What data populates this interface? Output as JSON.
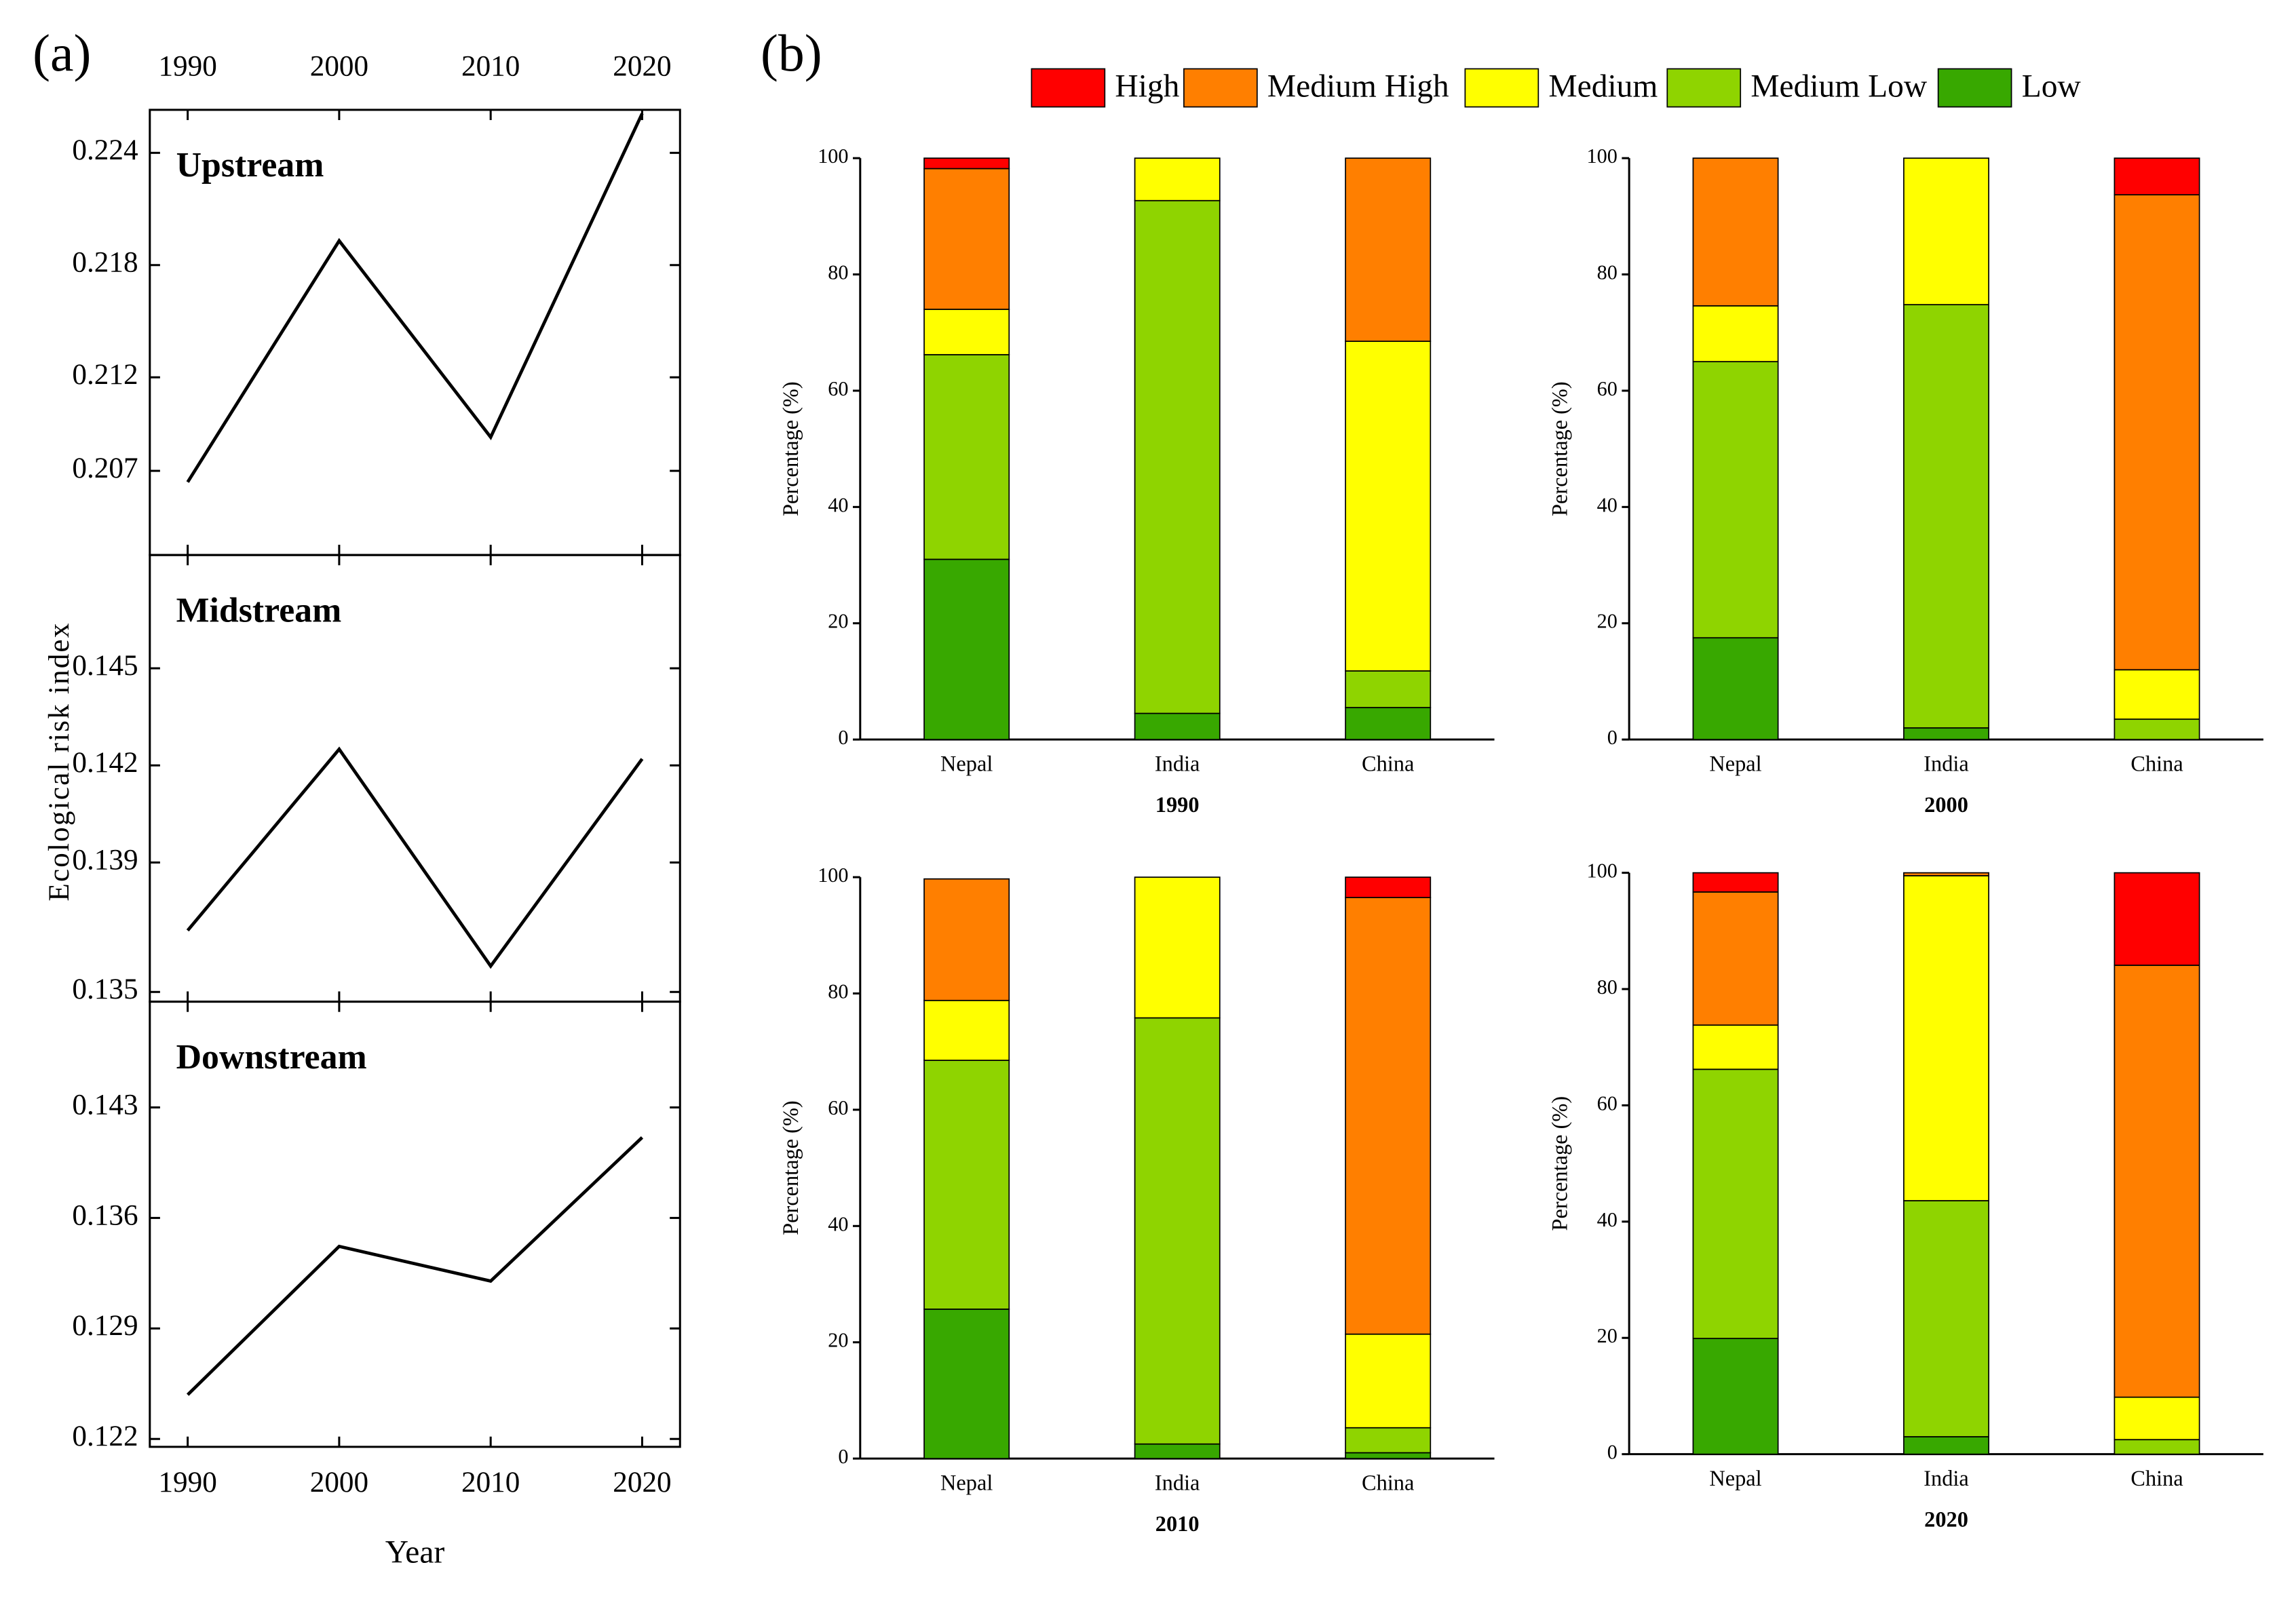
{
  "labels": {
    "a": "(a)",
    "b": "(b)",
    "y_axis": "Ecological risk index",
    "x_axis": "Year"
  },
  "chart_data": [
    {
      "type": "line",
      "title": "Upstream",
      "x": [
        1990,
        2000,
        2010,
        2020
      ],
      "values": [
        0.2064,
        0.2193,
        0.2088,
        0.2261
      ],
      "xlim": [
        1987.5,
        2022.5
      ],
      "xticks": [
        1990,
        2000,
        2010,
        2020
      ],
      "xtick_labels": "top",
      "ylim": [
        0.2025,
        0.2263
      ],
      "yticks": [
        0.207,
        0.212,
        0.218,
        0.224
      ],
      "color": "#000000"
    },
    {
      "type": "line",
      "title": "Midstream",
      "x": [
        1990,
        2000,
        2010,
        2020
      ],
      "values": [
        0.1369,
        0.1425,
        0.1358,
        0.1422
      ],
      "xlim": [
        1987.5,
        2022.5
      ],
      "xticks": [
        1990,
        2000,
        2010,
        2020
      ],
      "xtick_labels": "none",
      "ylim": [
        0.1347,
        0.1485
      ],
      "yticks": [
        0.135,
        0.139,
        0.142,
        0.145
      ],
      "color": "#000000"
    },
    {
      "type": "line",
      "title": "Downstream",
      "x": [
        1990,
        2000,
        2010,
        2020
      ],
      "values": [
        0.1248,
        0.1342,
        0.132,
        0.1411
      ],
      "xlim": [
        1987.5,
        2022.5
      ],
      "xticks": [
        1990,
        2000,
        2010,
        2020
      ],
      "xtick_labels": "bottom",
      "ylim": [
        0.1215,
        0.1497
      ],
      "yticks": [
        0.122,
        0.129,
        0.136,
        0.143
      ],
      "color": "#000000"
    },
    {
      "type": "stacked_bar",
      "panels": [
        "1990",
        "2000",
        "2010",
        "2020"
      ],
      "categories": [
        "Nepal",
        "India",
        "China"
      ],
      "ylabel": "Percentage (%)",
      "ylim": [
        0,
        100
      ],
      "yticks": [
        0,
        20,
        40,
        60,
        80,
        100
      ],
      "series": [
        {
          "name": "High",
          "color": "#ff0000",
          "values": [
            [
              1.8,
              0,
              0
            ],
            [
              0,
              0,
              6.3
            ],
            [
              0,
              0,
              3.5
            ],
            [
              3.3,
              0,
              15.9
            ]
          ]
        },
        {
          "name": "Medium High",
          "color": "#ff7f00",
          "values": [
            [
              24.2,
              0,
              31.5
            ],
            [
              25.4,
              0,
              81.7
            ],
            [
              20.9,
              0,
              75.1
            ],
            [
              22.9,
              0.5,
              74.3
            ]
          ]
        },
        {
          "name": "Medium",
          "color": "#ffff00",
          "values": [
            [
              7.8,
              7.3,
              56.7
            ],
            [
              9.6,
              25.2,
              8.5
            ],
            [
              10.3,
              24.2,
              16.1
            ],
            [
              7.6,
              55.9,
              7.3
            ]
          ]
        },
        {
          "name": "Medium Low",
          "color": "#8fd400",
          "values": [
            [
              35.2,
              88.2,
              6.3
            ],
            [
              47.5,
              72.8,
              3.5
            ],
            [
              42.8,
              73.3,
              4.3
            ],
            [
              46.3,
              40.6,
              2.5
            ]
          ]
        },
        {
          "name": "Low",
          "color": "#38a800",
          "values": [
            [
              31,
              4.5,
              5.5
            ],
            [
              17.5,
              2,
              0
            ],
            [
              25.7,
              2.5,
              1
            ],
            [
              19.9,
              3,
              0
            ]
          ]
        }
      ]
    }
  ]
}
